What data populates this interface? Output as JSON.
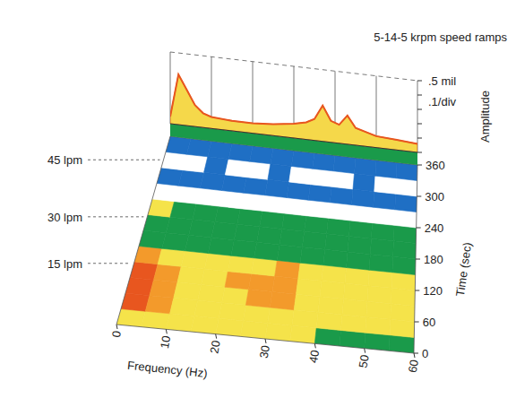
{
  "chart_data": {
    "type": "heatmap",
    "title": "5-14-5 krpm speed ramps",
    "xlabel": "Frequency (Hz)",
    "ylabel": "Time (sec)",
    "xlim": [
      0,
      60
    ],
    "xticks": [
      0,
      10,
      20,
      30,
      40,
      50,
      60
    ],
    "ylim": [
      0,
      360
    ],
    "yticks": [
      0,
      60,
      120,
      180,
      240,
      300,
      360
    ],
    "x_bins": [
      0,
      5,
      10,
      15,
      20,
      25,
      30,
      35,
      40,
      45,
      50,
      55,
      60
    ],
    "y_bins": [
      0,
      30,
      60,
      90,
      120,
      150,
      180,
      210,
      240,
      270,
      300,
      330,
      360
    ],
    "cells": [
      [
        0.3,
        0.28,
        0.27,
        0.26,
        0.27,
        0.26,
        0.27,
        0.26,
        0.22,
        0.22,
        0.2,
        0.2
      ],
      [
        0.45,
        0.34,
        0.3,
        0.28,
        0.3,
        0.29,
        0.3,
        0.28,
        0.27,
        0.26,
        0.26,
        0.25
      ],
      [
        0.47,
        0.36,
        0.32,
        0.29,
        0.33,
        0.36,
        0.34,
        0.3,
        0.28,
        0.27,
        0.26,
        0.26
      ],
      [
        0.44,
        0.38,
        0.33,
        0.3,
        0.36,
        0.38,
        0.35,
        0.31,
        0.29,
        0.27,
        0.26,
        0.26
      ],
      [
        0.4,
        0.32,
        0.29,
        0.28,
        0.3,
        0.31,
        0.34,
        0.29,
        0.27,
        0.26,
        0.26,
        0.25
      ],
      [
        0.22,
        0.21,
        0.2,
        0.2,
        0.2,
        0.19,
        0.2,
        0.19,
        0.19,
        0.18,
        0.18,
        0.18
      ],
      [
        0.21,
        0.2,
        0.19,
        0.19,
        0.2,
        0.19,
        0.19,
        0.18,
        0.19,
        0.18,
        0.18,
        0.17
      ],
      [
        0.26,
        0.2,
        0.19,
        0.18,
        0.19,
        0.18,
        0.18,
        0.18,
        0.17,
        0.17,
        0.17,
        0.17
      ],
      [
        0.05,
        0.04,
        0.04,
        0.05,
        0.04,
        0.04,
        0.05,
        0.04,
        0.04,
        0.04,
        0.04,
        0.04
      ],
      [
        0.1,
        0.12,
        0.1,
        0.09,
        0.12,
        0.1,
        0.11,
        0.1,
        0.12,
        0.1,
        0.09,
        0.1
      ],
      [
        0.04,
        0.05,
        0.1,
        0.04,
        0.05,
        0.12,
        0.04,
        0.05,
        0.04,
        0.1,
        0.05,
        0.04
      ],
      [
        0.12,
        0.1,
        0.12,
        0.13,
        0.1,
        0.12,
        0.11,
        0.1,
        0.12,
        0.1,
        0.12,
        0.11
      ]
    ],
    "zlim": [
      0,
      0.5
    ],
    "colors": [
      "#ffffff",
      "#1f6fc4",
      "#1a9a4a",
      "#f5e34a",
      "#f39a2b",
      "#e8561f"
    ],
    "amplitude": {
      "label": "Amplitude",
      "lim": [
        0,
        0.5
      ],
      "ticks": [
        0,
        0.1,
        0.2,
        0.3,
        0.4,
        0.5
      ],
      "top_label": ".5 mil",
      "div_label": ".1/div",
      "x": [
        0,
        2,
        4,
        6,
        8,
        10,
        15,
        20,
        25,
        30,
        33,
        35,
        37,
        39,
        41,
        43,
        45,
        50,
        55,
        60
      ],
      "values": [
        0.05,
        0.35,
        0.25,
        0.15,
        0.1,
        0.08,
        0.07,
        0.07,
        0.08,
        0.1,
        0.12,
        0.15,
        0.25,
        0.15,
        0.13,
        0.2,
        0.12,
        0.08,
        0.07,
        0.06
      ]
    },
    "annotations": [
      {
        "text": "45 lpm",
        "y": 315
      },
      {
        "text": "30 lpm",
        "y": 206
      },
      {
        "text": "15 lpm",
        "y": 117
      }
    ]
  }
}
